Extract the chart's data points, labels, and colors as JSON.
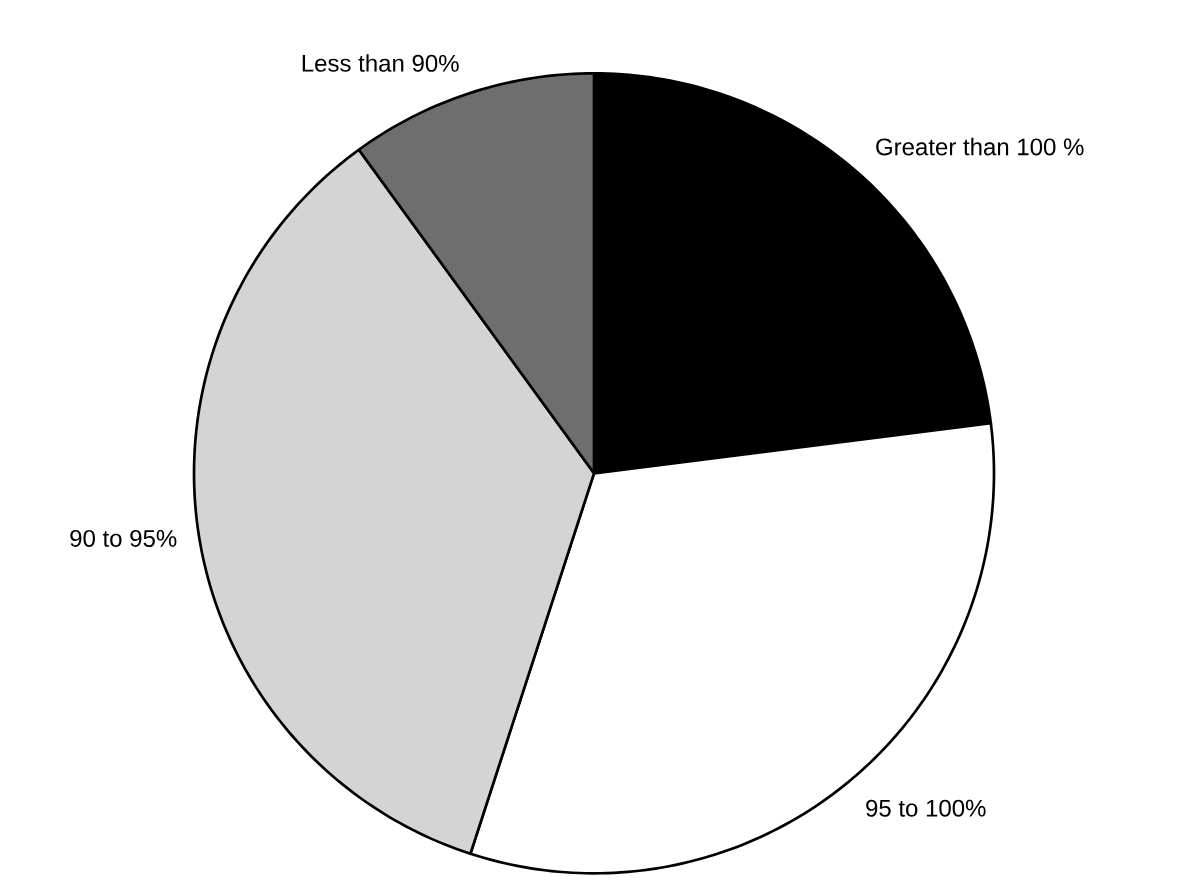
{
  "chart_data": {
    "type": "pie",
    "categories": [
      "Greater than 100 %",
      "95 to 100%",
      "90 to 95%",
      "Less than 90%"
    ],
    "values": [
      23,
      32,
      35,
      10
    ],
    "colors": [
      "#000000",
      "#ffffff",
      "#d4d4d4",
      "#6e6e6e"
    ]
  }
}
